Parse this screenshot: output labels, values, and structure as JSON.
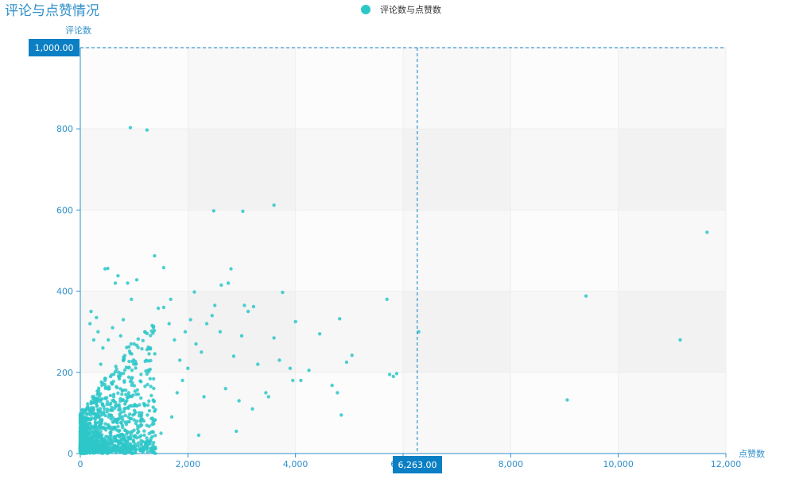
{
  "chart_data": {
    "type": "scatter",
    "title": "评论与点赞情况",
    "xlabel": "点赞数",
    "ylabel": "评论数",
    "legend": {
      "entries": [
        "评论数与点赞数"
      ],
      "placement": "top-center"
    },
    "xlim": [
      0,
      12000
    ],
    "ylim": [
      0,
      1000
    ],
    "xticks": [
      "0",
      "2,000",
      "4,000",
      "6,000",
      "8,000",
      "10,000",
      "12,000"
    ],
    "yticks": [
      "0",
      "200",
      "400",
      "600",
      "800",
      "1,000"
    ],
    "grid": true,
    "crosshair": {
      "x": 6263,
      "y": 1000,
      "x_label": "6,263.00",
      "y_label": "1,000.00"
    },
    "series_color": "#2ec7c9",
    "series": [
      {
        "name": "评论数与点赞数",
        "points": [
          [
            930,
            803
          ],
          [
            1240,
            797
          ],
          [
            2480,
            598
          ],
          [
            3020,
            597
          ],
          [
            3600,
            612
          ],
          [
            11650,
            545
          ],
          [
            9400,
            388
          ],
          [
            11150,
            280
          ],
          [
            9050,
            132
          ],
          [
            6290,
            300
          ],
          [
            5700,
            380
          ],
          [
            5750,
            195
          ],
          [
            5820,
            190
          ],
          [
            5880,
            197
          ],
          [
            460,
            455
          ],
          [
            510,
            456
          ],
          [
            700,
            438
          ],
          [
            1050,
            428
          ],
          [
            1380,
            487
          ],
          [
            1550,
            458
          ],
          [
            2620,
            415
          ],
          [
            2750,
            420
          ],
          [
            2800,
            455
          ],
          [
            3760,
            397
          ],
          [
            3050,
            365
          ],
          [
            3220,
            362
          ],
          [
            2120,
            398
          ],
          [
            2500,
            365
          ],
          [
            1450,
            358
          ],
          [
            1680,
            380
          ],
          [
            880,
            420
          ],
          [
            950,
            380
          ],
          [
            4000,
            325
          ],
          [
            4450,
            295
          ],
          [
            4820,
            332
          ],
          [
            5050,
            242
          ],
          [
            4950,
            225
          ],
          [
            4680,
            168
          ],
          [
            4780,
            150
          ],
          [
            4850,
            95
          ],
          [
            3900,
            210
          ],
          [
            3950,
            180
          ],
          [
            4100,
            180
          ],
          [
            4250,
            205
          ],
          [
            3600,
            285
          ],
          [
            3700,
            230
          ],
          [
            3450,
            150
          ],
          [
            3300,
            220
          ],
          [
            3120,
            350
          ],
          [
            3000,
            290
          ],
          [
            2850,
            240
          ],
          [
            2600,
            300
          ],
          [
            2450,
            340
          ],
          [
            2350,
            320
          ],
          [
            2250,
            250
          ],
          [
            2150,
            270
          ],
          [
            2050,
            330
          ],
          [
            1950,
            300
          ],
          [
            1850,
            230
          ],
          [
            1750,
            280
          ],
          [
            1650,
            320
          ],
          [
            1550,
            360
          ],
          [
            2900,
            55
          ],
          [
            2200,
            45
          ],
          [
            600,
            310
          ],
          [
            800,
            330
          ],
          [
            1200,
            300
          ],
          [
            1000,
            270
          ],
          [
            1300,
            260
          ],
          [
            750,
            290
          ],
          [
            520,
            280
          ],
          [
            420,
            260
          ],
          [
            330,
            300
          ],
          [
            250,
            280
          ],
          [
            200,
            350
          ],
          [
            180,
            320
          ],
          [
            300,
            335
          ],
          [
            650,
            420
          ],
          [
            1800,
            150
          ],
          [
            1900,
            180
          ],
          [
            2000,
            210
          ],
          [
            2300,
            140
          ],
          [
            2700,
            160
          ],
          [
            2950,
            130
          ],
          [
            3200,
            110
          ],
          [
            3500,
            140
          ],
          [
            1700,
            90
          ],
          [
            1500,
            50
          ],
          [
            1100,
            120
          ],
          [
            380,
            220
          ],
          [
            460,
            180
          ],
          [
            540,
            160
          ],
          [
            620,
            140
          ],
          [
            720,
            120
          ],
          [
            820,
            110
          ],
          [
            900,
            150
          ],
          [
            980,
            95
          ],
          [
            1150,
            85
          ],
          [
            1250,
            170
          ]
        ]
      }
    ]
  }
}
